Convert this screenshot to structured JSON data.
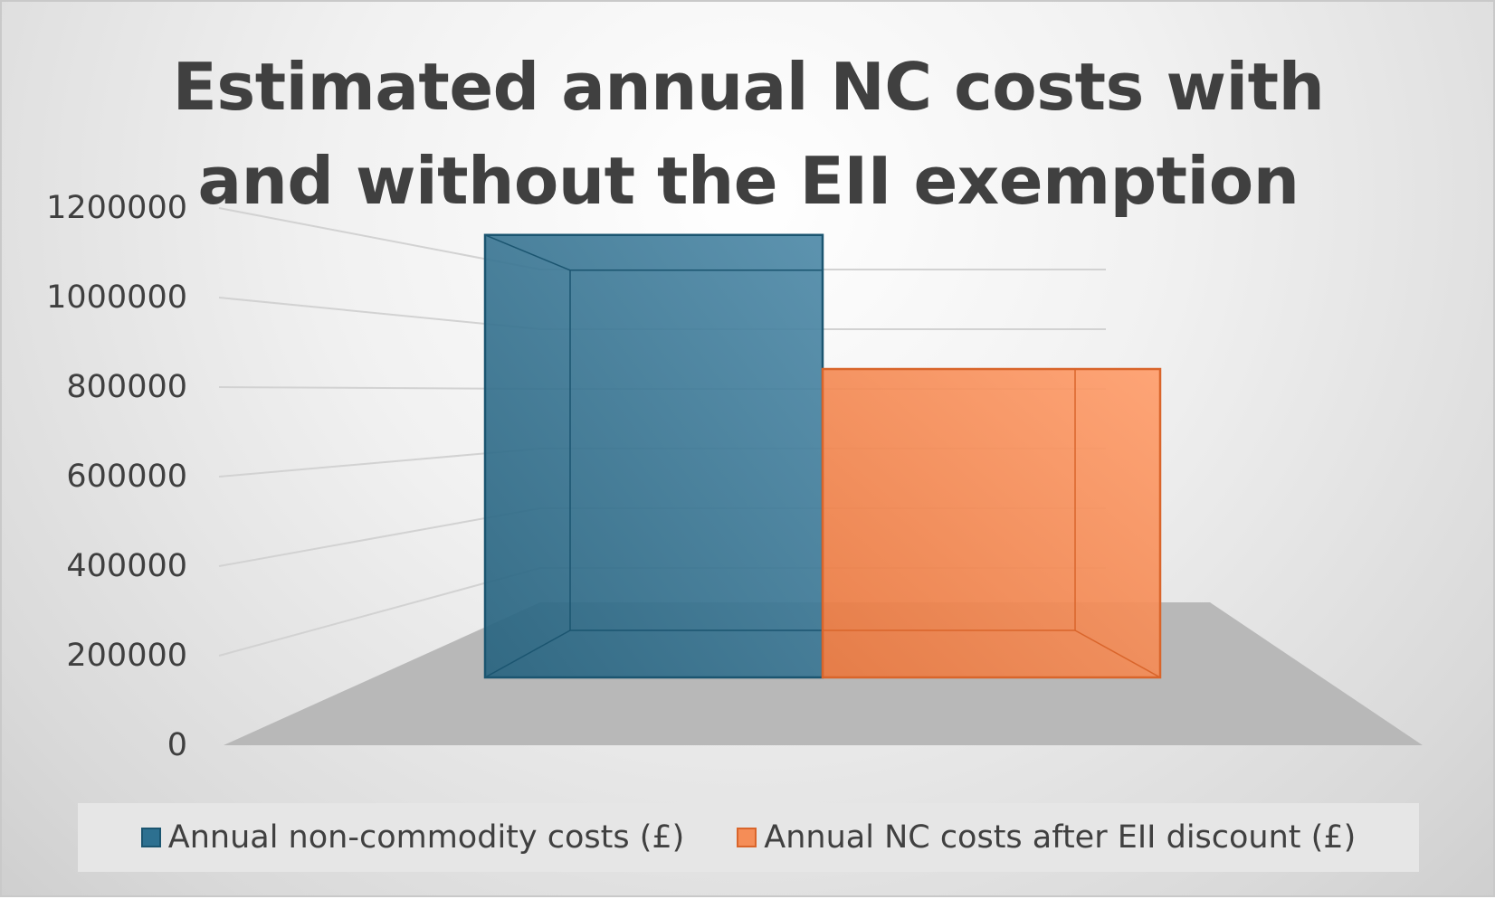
{
  "chart_data": {
    "type": "bar",
    "title": "Estimated annual NC costs with and without the EII exemption",
    "categories": [
      ""
    ],
    "series": [
      {
        "name": "Annual non-commodity costs (£)",
        "values": [
          990000
        ],
        "color": "#2d7090",
        "edge_color": "#1b5570"
      },
      {
        "name": "Annual NC costs after EII discount (£)",
        "values": [
          690000
        ],
        "color": "#f58d57",
        "edge_color": "#d9652b"
      }
    ],
    "yticks": [
      "0",
      "200000",
      "400000",
      "600000",
      "800000",
      "1000000",
      "1200000"
    ],
    "ylim": [
      0,
      1200000
    ],
    "xlabel": "",
    "ylabel": "",
    "grid": true,
    "legend_position": "bottom",
    "style": "3d-column"
  }
}
